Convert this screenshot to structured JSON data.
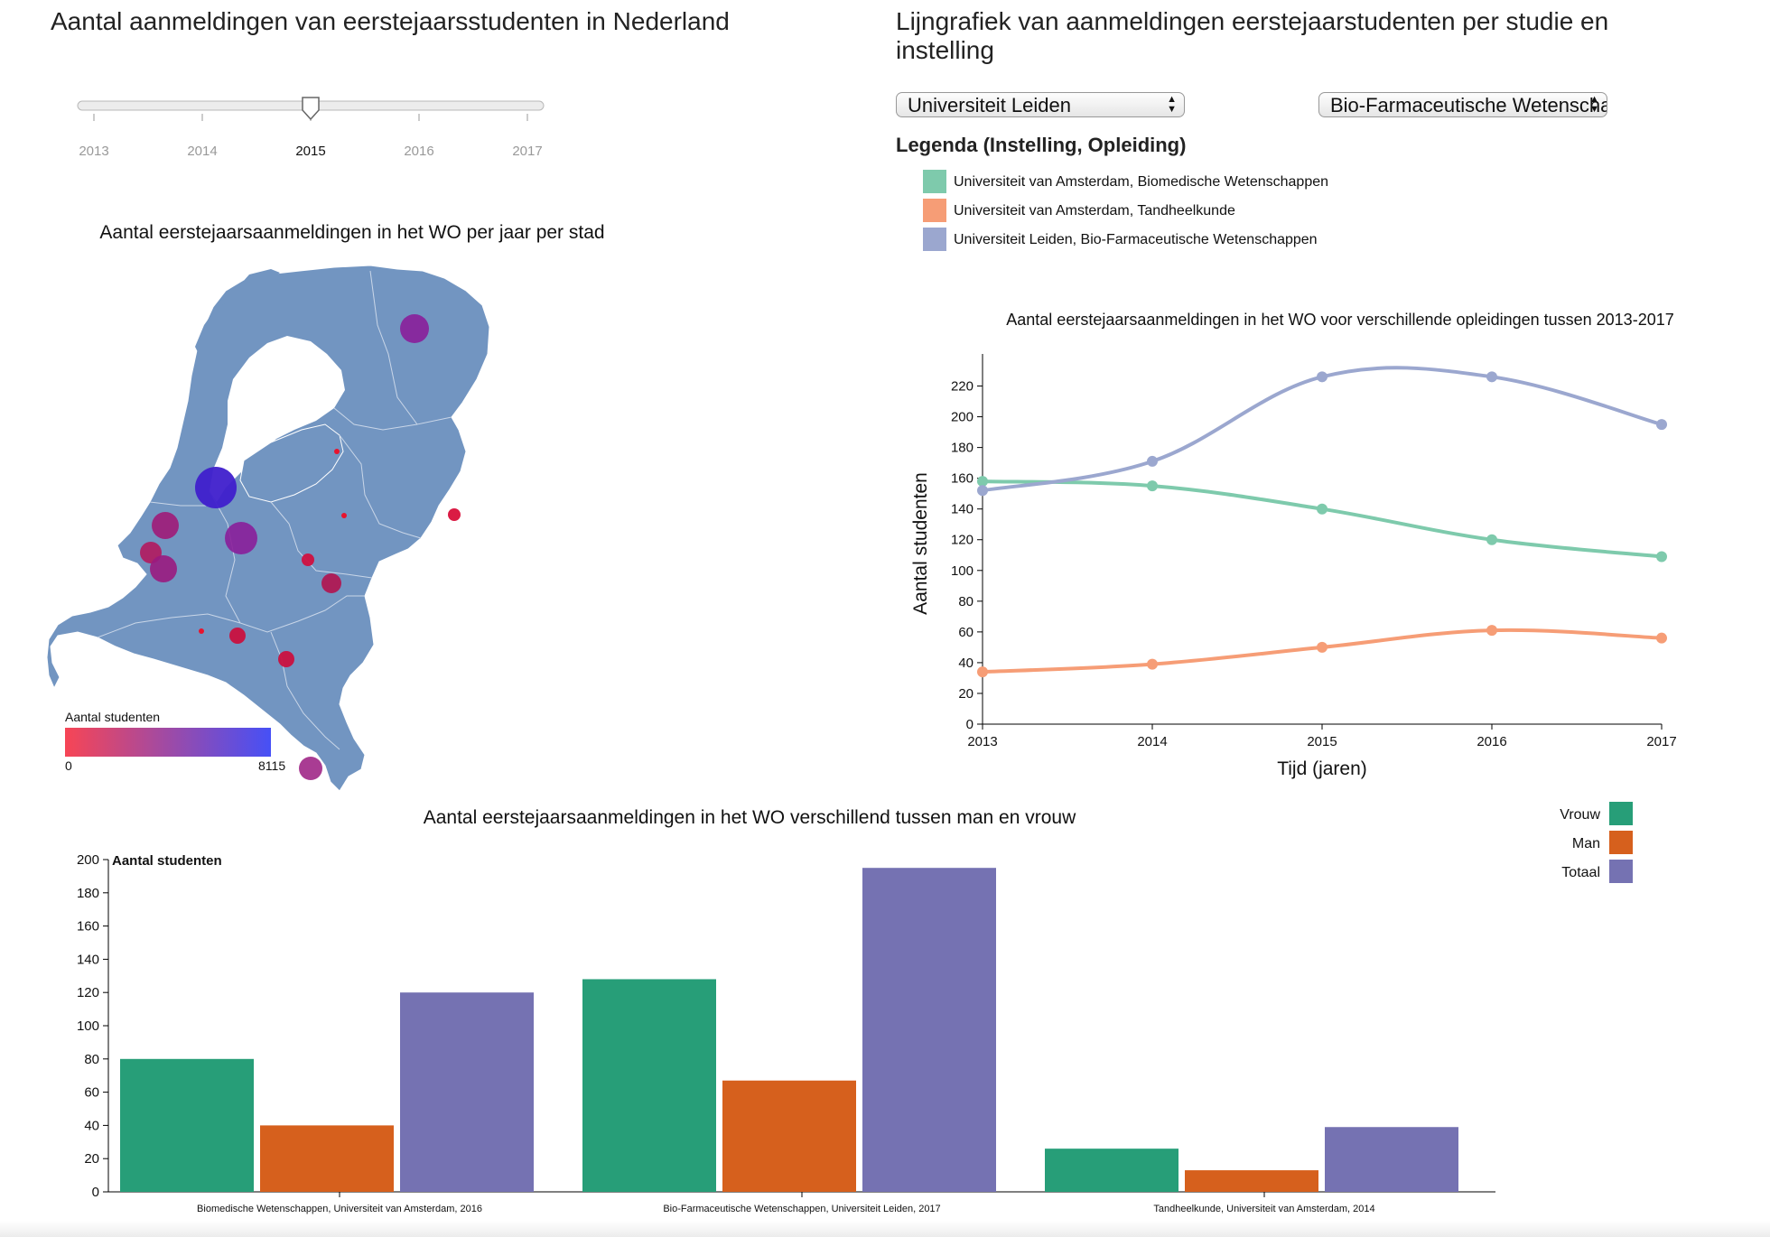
{
  "page": {
    "title_left": "Aantal aanmeldingen van eerstejaarsstudenten in Nederland",
    "title_right": "Lijngrafiek van aanmeldingen eerstejaarstudenten per studie en instelling"
  },
  "slider": {
    "years": [
      "2013",
      "2014",
      "2015",
      "2016",
      "2017"
    ],
    "selected": "2015"
  },
  "controls": {
    "institution_select": "Universiteit Leiden",
    "program_select": "Bio-Farmaceutische Wetenschappen"
  },
  "line_legend": {
    "title": "Legenda (Instelling, Opleiding)",
    "items": [
      {
        "label": "Universiteit van Amsterdam, Biomedische Wetenschappen",
        "color": "#7ecaac"
      },
      {
        "label": "Universiteit van Amsterdam, Tandheelkunde",
        "color": "#f69d76"
      },
      {
        "label": "Universiteit Leiden, Bio-Farmaceutische Wetenschappen",
        "color": "#9ba7cf"
      }
    ]
  },
  "map": {
    "title": "Aantal eerstejaarsaanmeldingen in het WO per jaar per stad",
    "legend_title": "Aantal studenten",
    "legend_min": "0",
    "legend_max": "8115",
    "land_color": "#7295c1",
    "color_low": "#f74555",
    "color_high": "#4650f6"
  },
  "chart_data": [
    {
      "type": "line",
      "title": "Aantal eerstejaarsaanmeldingen in het WO voor verschillende opleidingen tussen 2013-2017",
      "xlabel": "Tijd (jaren)",
      "ylabel": "Aantal studenten",
      "x": [
        2013,
        2014,
        2015,
        2016,
        2017
      ],
      "ylim": [
        0,
        235
      ],
      "yticks": [
        0,
        20,
        40,
        60,
        80,
        100,
        120,
        140,
        160,
        180,
        200,
        220
      ],
      "series": [
        {
          "name": "Universiteit van Amsterdam, Biomedische Wetenschappen",
          "color": "#7ecaac",
          "values": [
            158,
            155,
            140,
            120,
            109
          ]
        },
        {
          "name": "Universiteit van Amsterdam, Tandheelkunde",
          "color": "#f69d76",
          "values": [
            34,
            39,
            50,
            61,
            56
          ]
        },
        {
          "name": "Universiteit Leiden, Bio-Farmaceutische Wetenschappen",
          "color": "#9ba7cf",
          "values": [
            152,
            171,
            226,
            226,
            195
          ]
        }
      ]
    },
    {
      "type": "bar",
      "title": "Aantal eerstejaarsaanmeldingen in het WO verschillend tussen man en vrouw",
      "ylabel": "Aantal studenten",
      "ylim": [
        0,
        200
      ],
      "yticks": [
        0,
        20,
        40,
        60,
        80,
        100,
        120,
        140,
        160,
        180,
        200
      ],
      "categories": [
        "Biomedische Wetenschappen, Universiteit van Amsterdam, 2016",
        "Bio-Farmaceutische Wetenschappen, Universiteit Leiden, 2017",
        "Tandheelkunde, Universiteit van Amsterdam, 2014"
      ],
      "series": [
        {
          "name": "Vrouw",
          "color": "#279e78",
          "values": [
            80,
            128,
            26
          ]
        },
        {
          "name": "Man",
          "color": "#d6601d",
          "values": [
            40,
            67,
            13
          ]
        },
        {
          "name": "Totaal",
          "color": "#7572b2",
          "values": [
            120,
            195,
            39
          ]
        }
      ]
    }
  ]
}
